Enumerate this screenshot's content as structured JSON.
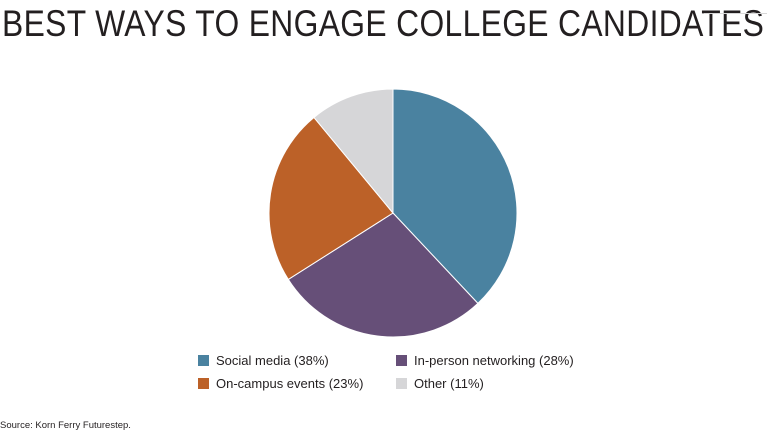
{
  "title": "BEST WAYS TO ENGAGE COLLEGE CANDIDATES",
  "source": "Source: Korn Ferry Futurestep.",
  "chart_data": {
    "type": "pie",
    "title": "BEST WAYS TO ENGAGE COLLEGE CANDIDATES",
    "slices": [
      {
        "label": "Social media (38%)",
        "value": 38,
        "color": "#4a82a0"
      },
      {
        "label": "In-person networking (28%)",
        "value": 28,
        "color": "#664f78"
      },
      {
        "label": "On-campus events (23%)",
        "value": 23,
        "color": "#bc6128"
      },
      {
        "label": "Other (11%)",
        "value": 11,
        "color": "#d6d6d8"
      }
    ],
    "legend_position": "bottom"
  }
}
